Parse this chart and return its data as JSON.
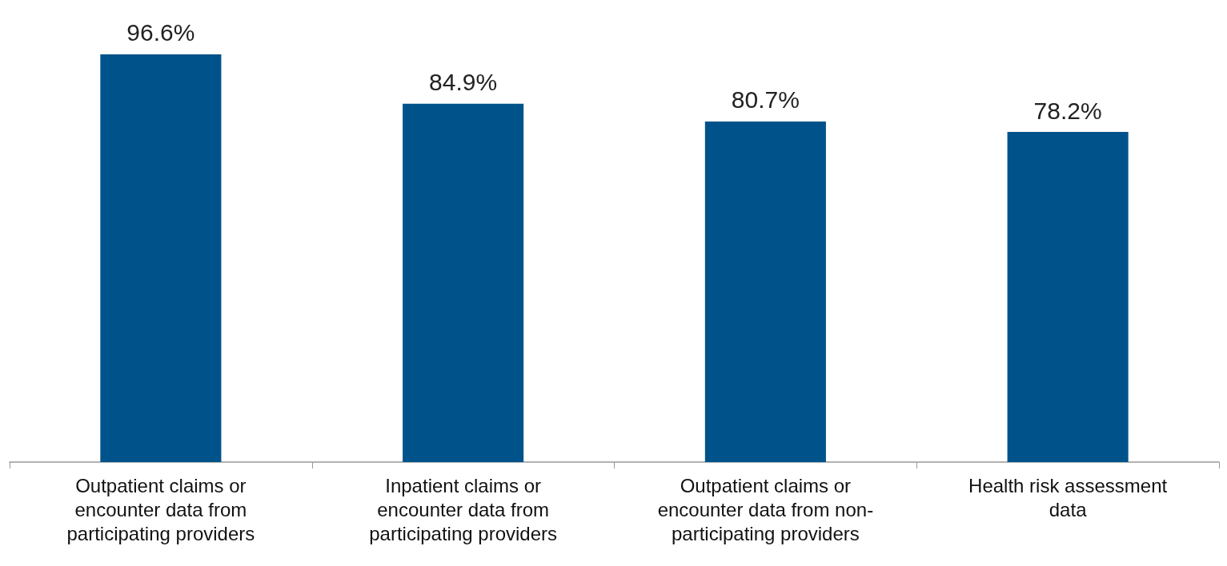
{
  "chart_data": {
    "type": "bar",
    "categories": [
      "Outpatient claims or\nencounter data from\nparticipating providers",
      "Inpatient claims or\nencounter data from\nparticipating providers",
      "Outpatient claims or\nencounter data from non-\nparticipating providers",
      "Health risk assessment\ndata"
    ],
    "values": [
      96.6,
      84.9,
      80.7,
      78.2
    ],
    "value_labels": [
      "96.6%",
      "84.9%",
      "80.7%",
      "78.2%"
    ],
    "color": "#00538a"
  }
}
